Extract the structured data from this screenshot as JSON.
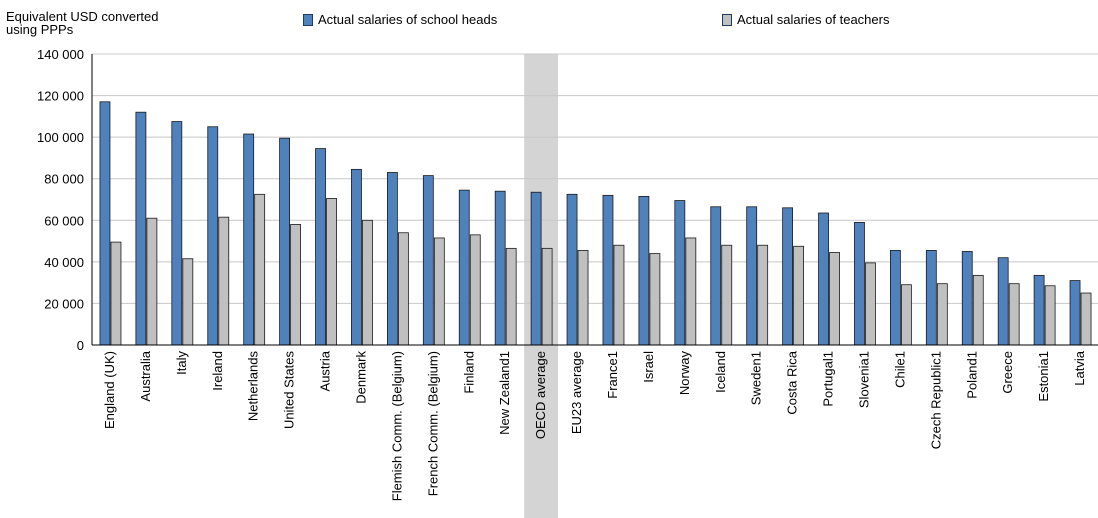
{
  "chart_data": {
    "type": "bar",
    "ylabel_lines": [
      "Equivalent USD converted",
      "using PPPs"
    ],
    "ylim": [
      0,
      140000
    ],
    "yticks": [
      0,
      20000,
      40000,
      60000,
      80000,
      100000,
      120000,
      140000
    ],
    "ytick_labels": [
      "0",
      "20 000",
      "40 000",
      "60 000",
      "80 000",
      "100 000",
      "120 000",
      "140 000"
    ],
    "grid": true,
    "legend_position": "top",
    "highlight_category": "OECD average",
    "categories": [
      "England (UK)",
      "Australia",
      "Italy",
      "Ireland",
      "Netherlands",
      "United States",
      "Austria",
      "Denmark",
      "Flemish Comm. (Belgium)",
      "French Comm. (Belgium)",
      "Finland",
      "New Zealand1",
      "OECD average",
      "EU23 average",
      "France1",
      "Israel",
      "Norway",
      "Iceland",
      "Sweden1",
      "Costa Rica",
      "Portugal1",
      "Slovenia1",
      "Chile1",
      "Czech Republic1",
      "Poland1",
      "Greece",
      "Estonia1",
      "Latvia"
    ],
    "series": [
      {
        "name": "Actual salaries of school heads",
        "color": "#4f81bd",
        "values": [
          117000,
          112000,
          107500,
          105000,
          101500,
          99500,
          94500,
          84500,
          83000,
          81500,
          74500,
          74000,
          73500,
          72500,
          72000,
          71500,
          69500,
          66500,
          66500,
          66000,
          63500,
          59000,
          45500,
          45500,
          45000,
          42000,
          33500,
          31000
        ]
      },
      {
        "name": "Actual salaries of teachers",
        "color": "#c0c0c0",
        "values": [
          49500,
          61000,
          41500,
          61500,
          72500,
          58000,
          70500,
          60000,
          54000,
          51500,
          53000,
          46500,
          46500,
          45500,
          48000,
          44000,
          51500,
          48000,
          48000,
          47500,
          44500,
          39500,
          29000,
          29500,
          33500,
          29500,
          28500,
          25000
        ]
      }
    ]
  }
}
